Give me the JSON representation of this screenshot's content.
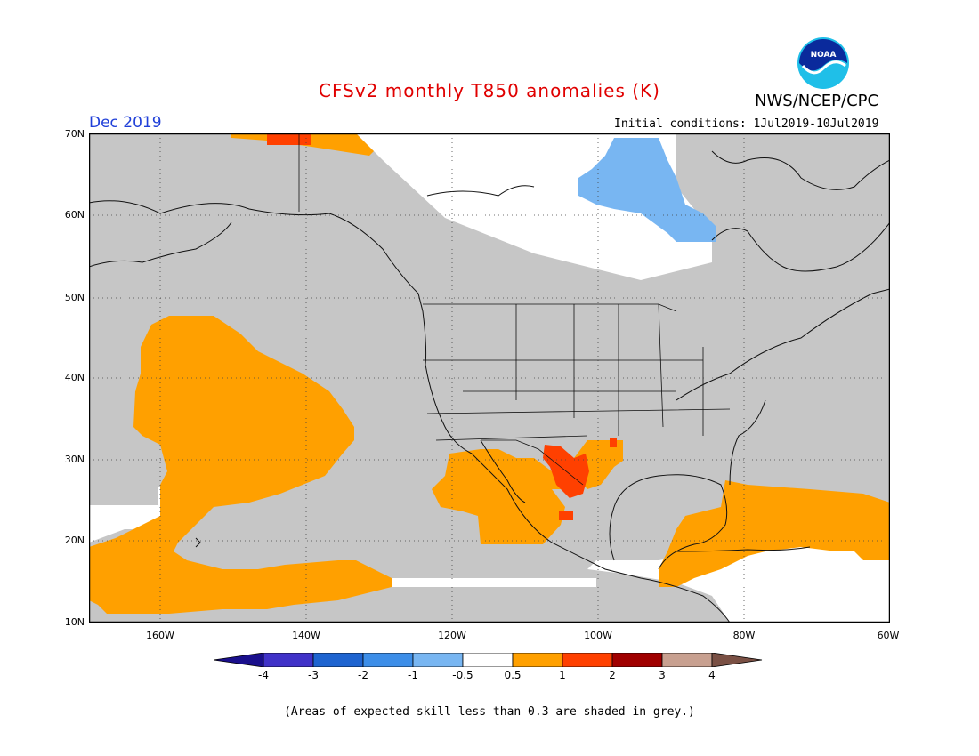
{
  "title": "CFSv2 monthly T850 anomalies (K)",
  "agency": "NWS/NCEP/CPC",
  "logo_text": "NOAA",
  "month": "Dec 2019",
  "initial_conditions": "Initial conditions: 1Jul2019-10Jul2019",
  "lat_labels": [
    "70N",
    "60N",
    "50N",
    "40N",
    "30N",
    "20N",
    "10N"
  ],
  "lon_labels": [
    "160W",
    "140W",
    "120W",
    "100W",
    "80W",
    "60W"
  ],
  "colorbar": {
    "labels": [
      "-4",
      "-3",
      "-2",
      "-1",
      "-0.5",
      "0.5",
      "1",
      "2",
      "3",
      "4"
    ],
    "colors": [
      "#1a0f8c",
      "#4032c8",
      "#1f64d0",
      "#3d8ee8",
      "#78b6f2",
      "#ffffff",
      "#ffa000",
      "#ff4000",
      "#a00000",
      "#c8a090",
      "#7a5044"
    ]
  },
  "note": "(Areas of expected skill less than 0.3 are shaded in grey.)",
  "colors": {
    "grey": "#c6c6c6",
    "orange": "#ffa000",
    "red": "#ff4000",
    "lightblue": "#78b6f2",
    "white": "#ffffff"
  }
}
